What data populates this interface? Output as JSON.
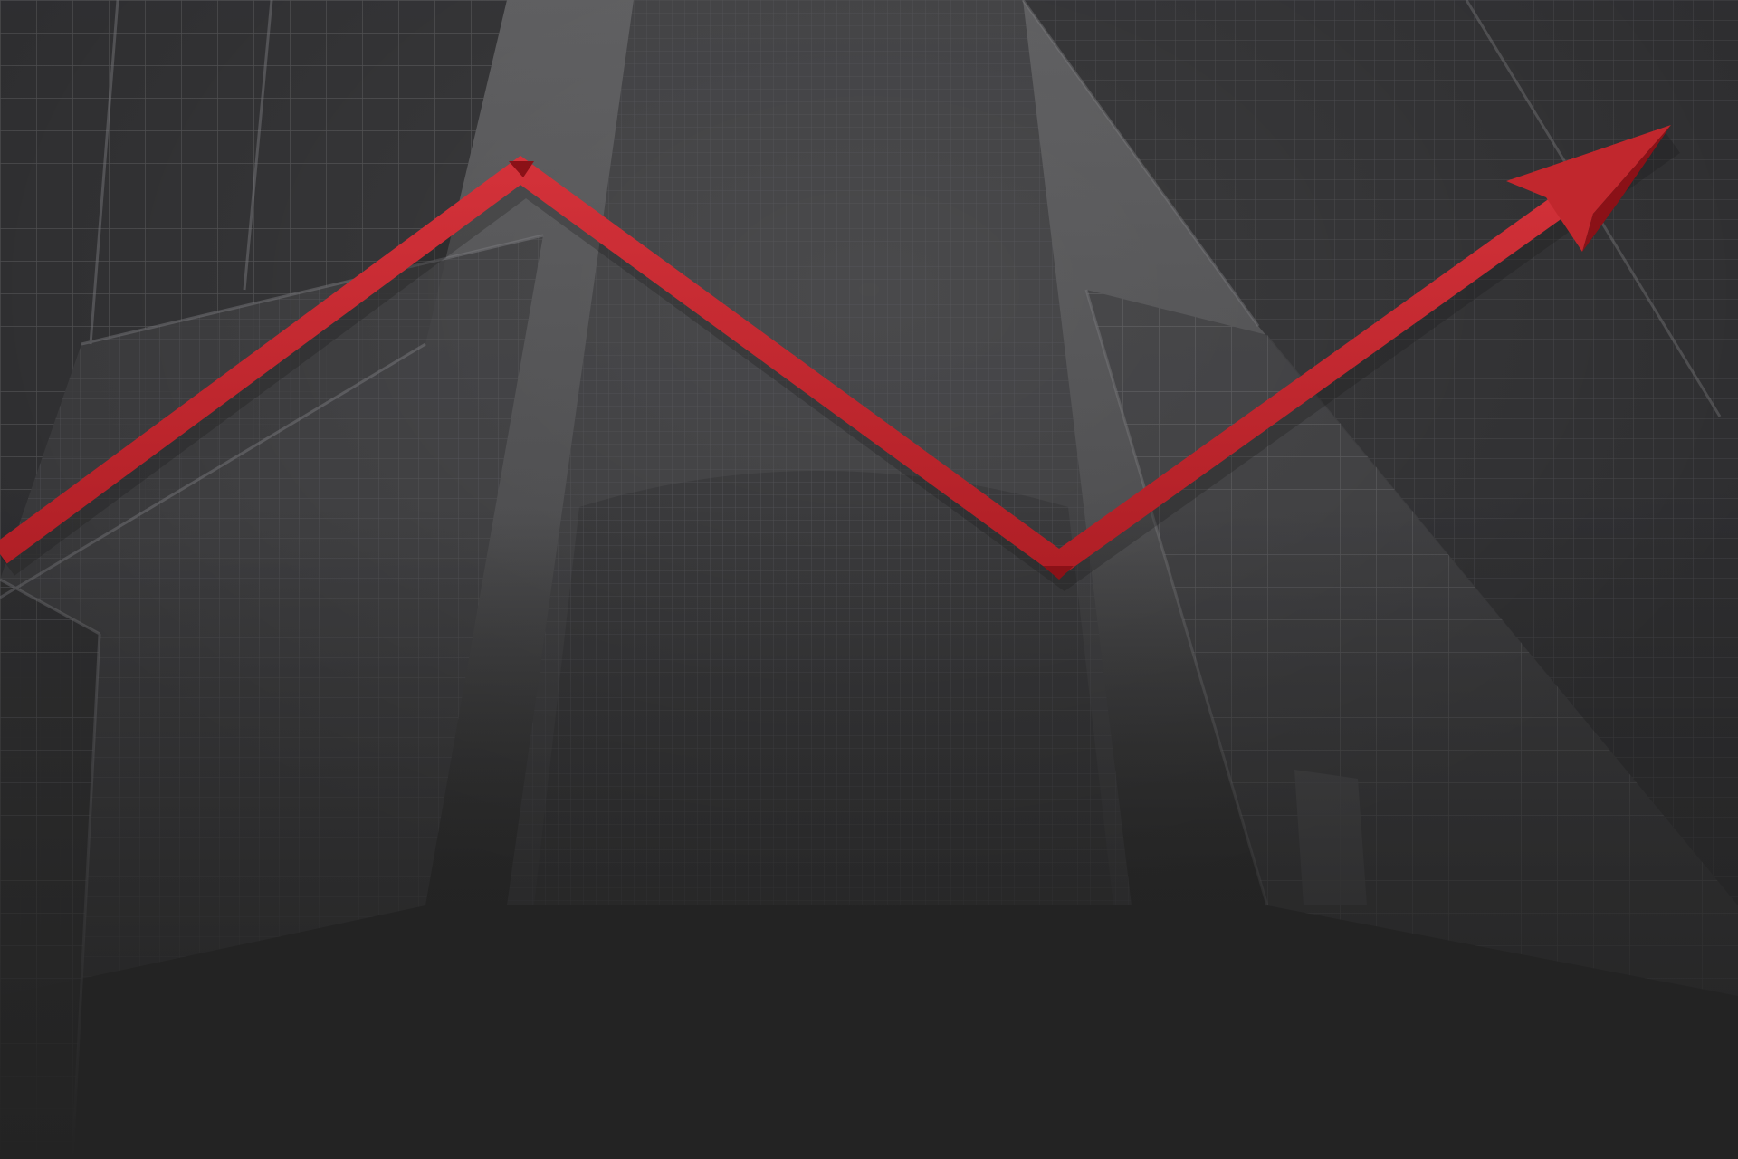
{
  "scene": {
    "subject": "looking-up-at-skyscrapers",
    "palette": {
      "sky_top": "#5a5a5c",
      "sky_mid": "#49494b",
      "floor": "#232323",
      "building_dark": "#2c2c2e",
      "building_mid": "#3a3a3c",
      "building_light": "#4a4a4c",
      "grid_line": "#6d6d70",
      "arrow_red": "#c1272d",
      "arrow_dark": "#8b1117",
      "arrow_shadow": "#1a1a1a"
    },
    "icons": {
      "trend_arrow": "trend-up-arrow-icon"
    }
  }
}
